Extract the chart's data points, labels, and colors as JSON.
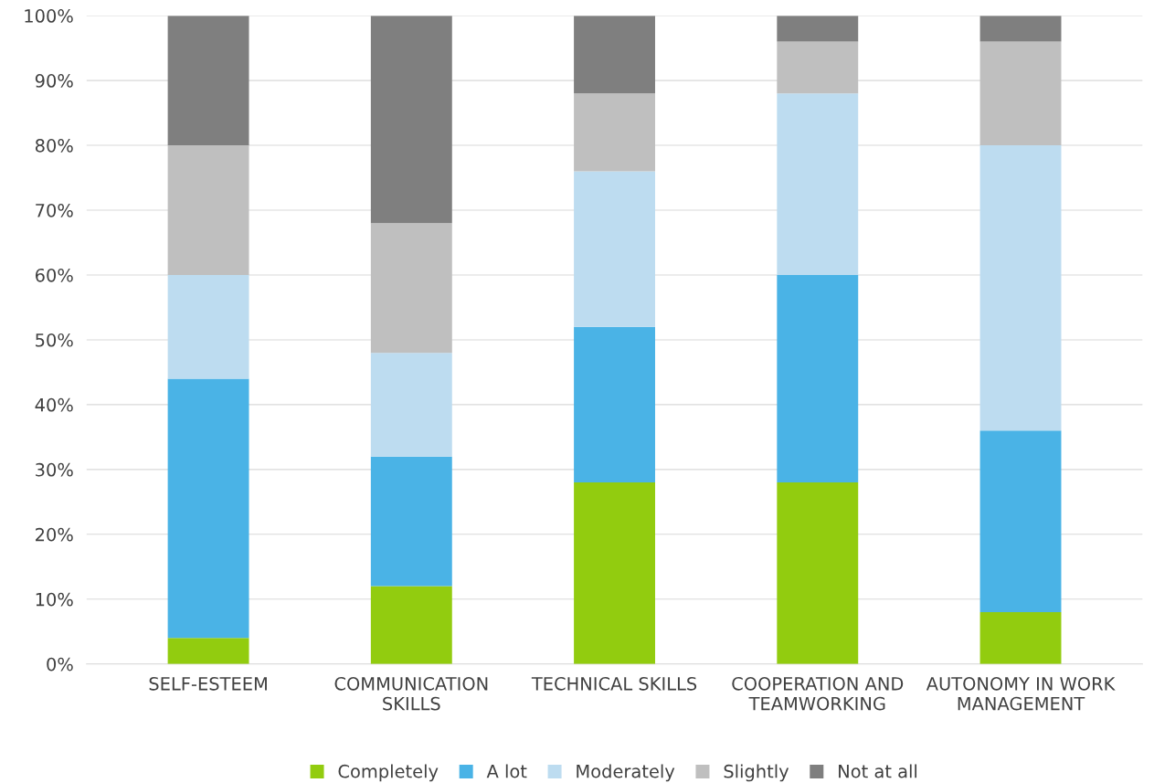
{
  "chart_data": {
    "type": "bar",
    "stacked": true,
    "categories": [
      "SELF-ESTEEM",
      "COMMUNICATION\nSKILLS",
      "TECHNICAL SKILLS",
      "COOPERATION AND\nTEAMWORKING",
      "AUTONOMY IN WORK\nMANAGEMENT"
    ],
    "series": [
      {
        "name": "Completely",
        "color": "#92cc0f",
        "values": [
          4,
          12,
          28,
          28,
          8
        ]
      },
      {
        "name": "A lot",
        "color": "#4ab3e6",
        "values": [
          40,
          20,
          24,
          32,
          28
        ]
      },
      {
        "name": "Moderately",
        "color": "#bddcf0",
        "values": [
          16,
          16,
          24,
          28,
          44
        ]
      },
      {
        "name": "Slightly",
        "color": "#bfbfbf",
        "values": [
          20,
          20,
          12,
          8,
          16
        ]
      },
      {
        "name": "Not at all",
        "color": "#7f7f7f",
        "values": [
          20,
          32,
          12,
          4,
          4
        ]
      }
    ],
    "ylim": [
      0,
      100
    ],
    "yticks": [
      {
        "value": 0,
        "label": "0%"
      },
      {
        "value": 10,
        "label": "10%"
      },
      {
        "value": 20,
        "label": "20%"
      },
      {
        "value": 30,
        "label": "30%"
      },
      {
        "value": 40,
        "label": "40%"
      },
      {
        "value": 50,
        "label": "50%"
      },
      {
        "value": 60,
        "label": "60%"
      },
      {
        "value": 70,
        "label": "70%"
      },
      {
        "value": 80,
        "label": "80%"
      },
      {
        "value": 90,
        "label": "90%"
      },
      {
        "value": 100,
        "label": "100%"
      }
    ],
    "grid": "y",
    "legend": "bottom"
  }
}
